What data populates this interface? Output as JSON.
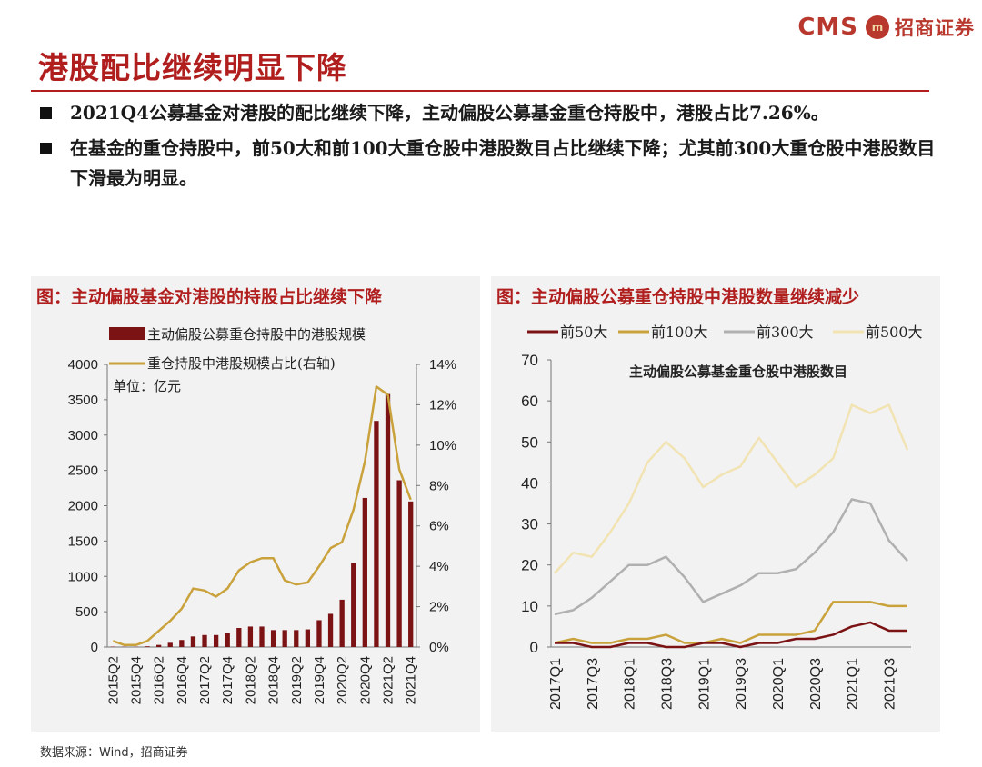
{
  "header": {
    "logo_text": "CMS",
    "logo_mark": "m",
    "logo_cn": "招商证券",
    "title": "港股配比继续明显下降"
  },
  "bullets": [
    "2021Q4公募基金对港股的配比继续下降，主动偏股公募基金重仓持股中，港股占比7.26%。",
    "在基金的重仓持股中，前50大和前100大重仓股中港股数目占比继续下降；尤其前300大重仓股中港股数目下滑最为明显。"
  ],
  "source": "数据来源：Wind，招商证券",
  "colors": {
    "title_red": "#b01e1e",
    "bar": "#7b1214",
    "line_gold": "#c9a23c",
    "top50": "#7b1214",
    "top100": "#c9a23c",
    "top300": "#b0b0b0",
    "top500": "#f2e3b3"
  },
  "chart_data": [
    {
      "type": "bar",
      "title": "图：主动偏股基金对港股的持股占比继续下降",
      "unit_label": "单位：亿元",
      "legend": [
        "主动偏股公募重仓持股中的港股规模",
        "重仓持股中港股规模占比(右轴)"
      ],
      "categories": [
        "2015Q2",
        "2015Q3",
        "2015Q4",
        "2016Q1",
        "2016Q2",
        "2016Q3",
        "2016Q4",
        "2017Q1",
        "2017Q2",
        "2017Q3",
        "2017Q4",
        "2018Q1",
        "2018Q2",
        "2018Q3",
        "2018Q4",
        "2019Q1",
        "2019Q2",
        "2019Q3",
        "2019Q4",
        "2020Q1",
        "2020Q2",
        "2020Q3",
        "2020Q4",
        "2021Q1",
        "2021Q2",
        "2021Q3",
        "2021Q4"
      ],
      "tick_labels": [
        "2015Q2",
        "2015Q4",
        "2016Q2",
        "2016Q4",
        "2017Q2",
        "2017Q4",
        "2018Q2",
        "2018Q4",
        "2019Q2",
        "2019Q4",
        "2020Q2",
        "2020Q4",
        "2021Q2",
        "2021Q4"
      ],
      "series": [
        {
          "name": "主动偏股公募重仓持股中的港股规模",
          "axis": "left",
          "kind": "bar",
          "values": [
            5,
            4,
            3,
            10,
            30,
            60,
            100,
            150,
            170,
            170,
            200,
            270,
            290,
            290,
            240,
            240,
            240,
            250,
            380,
            470,
            670,
            1190,
            2110,
            3200,
            3580,
            2360,
            2060
          ]
        },
        {
          "name": "重仓持股中港股规模占比(右轴)",
          "axis": "right",
          "kind": "line",
          "values": [
            0.3,
            0.1,
            0.1,
            0.3,
            0.8,
            1.3,
            1.9,
            2.9,
            2.8,
            2.5,
            2.9,
            3.8,
            4.2,
            4.4,
            4.4,
            3.3,
            3.1,
            3.2,
            4.0,
            4.9,
            5.2,
            6.8,
            9.2,
            12.9,
            12.5,
            8.8,
            7.3
          ]
        }
      ],
      "ylim_left": [
        0,
        4000
      ],
      "yticks_left": [
        0,
        500,
        1000,
        1500,
        2000,
        2500,
        3000,
        3500,
        4000
      ],
      "ylim_right": [
        0,
        14
      ],
      "yticks_right": [
        "0%",
        "2%",
        "4%",
        "6%",
        "8%",
        "10%",
        "12%",
        "14%"
      ]
    },
    {
      "type": "line",
      "title": "图：主动偏股公募重仓持股中港股数量继续减少",
      "inner_title": "主动偏股公募基金重仓股中港股数目",
      "categories": [
        "2017Q1",
        "2017Q2",
        "2017Q3",
        "2017Q4",
        "2018Q1",
        "2018Q2",
        "2018Q3",
        "2018Q4",
        "2019Q1",
        "2019Q2",
        "2019Q3",
        "2019Q4",
        "2020Q1",
        "2020Q2",
        "2020Q3",
        "2020Q4",
        "2021Q1",
        "2021Q2",
        "2021Q3",
        "2021Q4"
      ],
      "tick_labels": [
        "2017Q1",
        "2017Q3",
        "2018Q1",
        "2018Q3",
        "2019Q1",
        "2019Q3",
        "2020Q1",
        "2020Q3",
        "2021Q1",
        "2021Q3"
      ],
      "series": [
        {
          "name": "前50大",
          "values": [
            1,
            1,
            0,
            0,
            1,
            1,
            0,
            0,
            1,
            1,
            0,
            1,
            1,
            2,
            2,
            3,
            5,
            6,
            4,
            4
          ]
        },
        {
          "name": "前100大",
          "values": [
            1,
            2,
            1,
            1,
            2,
            2,
            3,
            1,
            1,
            2,
            1,
            3,
            3,
            3,
            4,
            11,
            11,
            11,
            10,
            10
          ]
        },
        {
          "name": "前300大",
          "values": [
            8,
            9,
            12,
            16,
            20,
            20,
            22,
            17,
            11,
            13,
            15,
            18,
            18,
            19,
            23,
            28,
            36,
            35,
            26,
            21
          ]
        },
        {
          "name": "前500大",
          "values": [
            18,
            23,
            22,
            28,
            35,
            45,
            50,
            46,
            39,
            42,
            44,
            51,
            45,
            39,
            42,
            46,
            59,
            57,
            59,
            48
          ]
        }
      ],
      "ylim": [
        0,
        70
      ],
      "yticks": [
        0,
        10,
        20,
        30,
        40,
        50,
        60,
        70
      ]
    }
  ]
}
